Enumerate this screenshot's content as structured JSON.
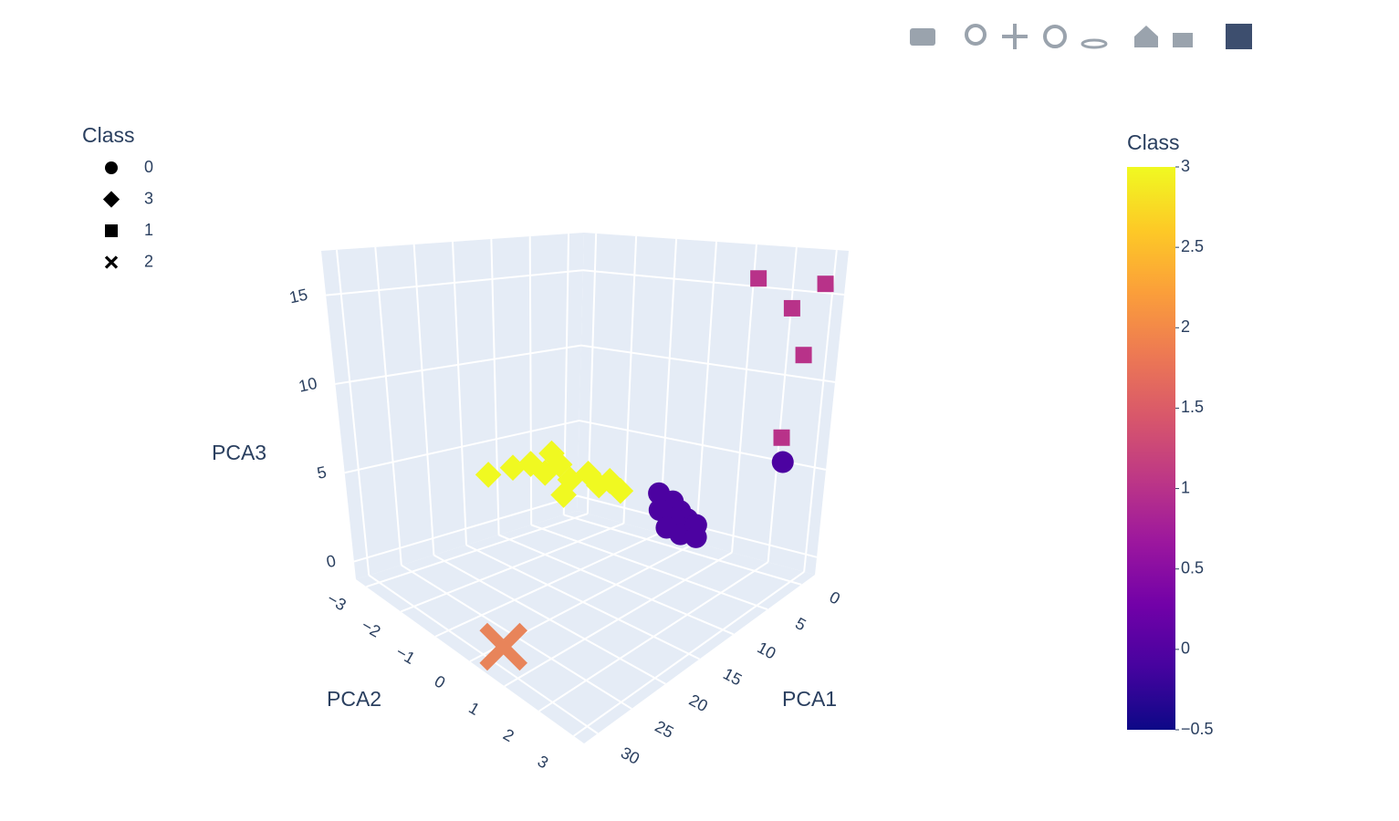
{
  "chart_data": {
    "type": "scatter3d",
    "xaxis_title": "PCA1",
    "yaxis_title": "PCA2",
    "zaxis_title": "PCA3",
    "xlim": [
      -2,
      32
    ],
    "ylim": [
      -3.3,
      3.3
    ],
    "zlim": [
      -1,
      17.5
    ],
    "xticks": [
      0,
      5,
      10,
      15,
      20,
      25,
      30
    ],
    "yticks": [
      {
        "value": -3,
        "label": "−3"
      },
      {
        "value": -2,
        "label": "−2"
      },
      {
        "value": -1,
        "label": "−1"
      },
      0,
      1,
      2,
      3
    ],
    "zticks": [
      0,
      5,
      10,
      15
    ],
    "legend_title": "Class",
    "series": [
      {
        "name": "0",
        "symbol": "circle",
        "color": "#4c02a1",
        "x": [
          3,
          3.5,
          4,
          4.5,
          5,
          5.5,
          6,
          4,
          3.2,
          4.8,
          5.2,
          6.5,
          0.5
        ],
        "y": [
          0.2,
          0.5,
          0.8,
          1.0,
          0.6,
          0.9,
          0.4,
          0.0,
          0.9,
          1.2,
          0.3,
          0.7,
          2.6
        ],
        "z": [
          2.5,
          2.2,
          2.0,
          1.8,
          2.1,
          1.5,
          2.6,
          3.0,
          1.6,
          1.4,
          2.4,
          1.9,
          5.5
        ]
      },
      {
        "name": "3",
        "symbol": "diamond",
        "color": "#f0f921",
        "x": [
          15,
          13,
          12,
          11,
          10.5,
          10,
          9,
          8.5,
          8,
          7.5,
          9.5,
          11.5
        ],
        "y": [
          -2.6,
          -2.3,
          -2.0,
          -1.8,
          -1.5,
          -1.3,
          -1.0,
          -0.8,
          -0.6,
          -0.4,
          -1.9,
          -1.2
        ],
        "z": [
          3.8,
          4.2,
          4.5,
          4.0,
          4.6,
          3.8,
          4.2,
          3.6,
          3.9,
          3.4,
          4.9,
          3.2
        ]
      },
      {
        "name": "1",
        "symbol": "square",
        "color": "#b83289",
        "x": [
          0.5,
          -1,
          1,
          0.5,
          1.5
        ],
        "y": [
          1.6,
          3.0,
          2.6,
          2.9,
          2.7
        ],
        "z": [
          15.5,
          15.5,
          14,
          11.5,
          7
        ]
      },
      {
        "name": "2",
        "symbol": "x",
        "color": "#e8845a",
        "x": [
          30.3
        ],
        "y": [
          0.66
        ],
        "z": [
          0
        ]
      }
    ],
    "colorbar_title": "Class",
    "colorbar_lim": [
      -0.5,
      3
    ],
    "colorbar_ticks": [
      {
        "value": -0.5,
        "label": "−0.5"
      },
      0,
      0.5,
      1,
      1.5,
      2,
      2.5,
      3
    ],
    "colorscale": [
      "#0d0887",
      "#46039f",
      "#7201a8",
      "#9c179e",
      "#bd3786",
      "#d8576b",
      "#ed7953",
      "#fb9f3a",
      "#fdca26",
      "#f0f921"
    ]
  }
}
